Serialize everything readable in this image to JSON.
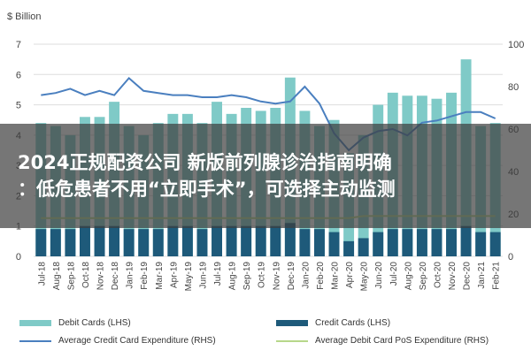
{
  "overlay": {
    "line1": "2024正规配资公司   新版前列腺诊治指南明确",
    "line2": "：低危患者不用“立即手术”，可选择主动监测"
  },
  "colors": {
    "debit": "#7fcac7",
    "credit": "#1e5a7a",
    "avg_credit": "#4a7fbf",
    "avg_debit": "#b7d78a",
    "grid": "#dddddd"
  },
  "chart_data": {
    "type": "bar",
    "left_axis_label": "$ Billion",
    "ylim_left": [
      0,
      7
    ],
    "ylim_right": [
      0,
      100
    ],
    "left_ticks": [
      "0",
      "1",
      "2",
      "3",
      "4",
      "5",
      "6",
      "7"
    ],
    "right_ticks": [
      "0",
      "20",
      "40",
      "60",
      "80",
      "100"
    ],
    "categories": [
      "Jul-18",
      "Aug-18",
      "Sep-18",
      "Oct-18",
      "Nov-18",
      "Dec-18",
      "Jan-19",
      "Feb-19",
      "Mar-19",
      "Apr-19",
      "May-19",
      "Jun-19",
      "Jul-19",
      "Aug-19",
      "Sep-19",
      "Oct-19",
      "Nov-19",
      "Dec-19",
      "Jan-20",
      "Feb-20",
      "Mar-20",
      "Apr-20",
      "May-20",
      "Jun-20",
      "Jul-20",
      "Aug-20",
      "Sep-20",
      "Oct-20",
      "Nov-20",
      "Dec-20",
      "Jan-21",
      "Feb-21"
    ],
    "series": [
      {
        "name": "Debit Cards (LHS)",
        "kind": "bar",
        "values": [
          4.4,
          4.3,
          4.0,
          4.6,
          4.6,
          5.1,
          4.3,
          4.0,
          4.4,
          4.7,
          4.7,
          4.4,
          5.1,
          4.7,
          4.9,
          4.8,
          4.9,
          5.9,
          4.8,
          4.3,
          4.5,
          3.4,
          4.0,
          5.0,
          5.4,
          5.3,
          5.3,
          5.2,
          5.4,
          6.5,
          4.3,
          4.4
        ]
      },
      {
        "name": "Credit Cards (LHS)",
        "kind": "bar",
        "values": [
          0.9,
          0.9,
          0.9,
          1.0,
          1.0,
          1.0,
          0.9,
          0.9,
          0.9,
          1.0,
          1.0,
          0.9,
          1.0,
          1.0,
          1.0,
          1.0,
          1.0,
          1.1,
          0.9,
          0.9,
          0.8,
          0.5,
          0.6,
          0.8,
          0.9,
          0.9,
          0.9,
          0.9,
          0.9,
          1.0,
          0.8,
          0.8
        ]
      },
      {
        "name": "Average Credit Card Expenditure (RHS)",
        "kind": "line",
        "values": [
          76,
          77,
          79,
          76,
          78,
          76,
          84,
          78,
          77,
          76,
          76,
          75,
          75,
          76,
          75,
          73,
          72,
          73,
          80,
          72,
          58,
          50,
          56,
          59,
          60,
          57,
          63,
          64,
          66,
          68,
          68,
          65
        ]
      },
      {
        "name": "Average Debit Card PoS Expenditure (RHS)",
        "kind": "line",
        "values": [
          18,
          18,
          18,
          18,
          18,
          18,
          18,
          18,
          18,
          18,
          18,
          18,
          18,
          18,
          18,
          18,
          18,
          18,
          18,
          18,
          18,
          18,
          19,
          19,
          19,
          19,
          19,
          19,
          19,
          19,
          19,
          19
        ]
      }
    ],
    "legend_placement": "bottom",
    "grid": true
  }
}
